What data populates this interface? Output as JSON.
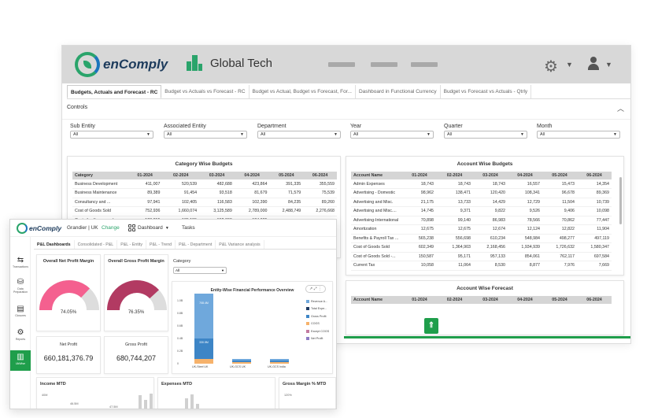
{
  "back": {
    "app_name": "enComply",
    "company": "Global Tech",
    "tabs": [
      "Budgets, Actuals and Forecast - RC",
      "Budget vs Actuals vs Forecast - RC",
      "Budget vs Actual, Budget vs Forecast, For...",
      "Dashboard in Functional Currency",
      "Budget vs Forecast vs Actuals - Qtrly"
    ],
    "controls_label": "Controls",
    "filters": [
      {
        "label": "Sub Entity",
        "value": "All"
      },
      {
        "label": "Associated Entity",
        "value": "All"
      },
      {
        "label": "Department",
        "value": "All"
      },
      {
        "label": "Year",
        "value": "All"
      },
      {
        "label": "Quarter",
        "value": "All"
      },
      {
        "label": "Month",
        "value": "All"
      }
    ],
    "category_budgets": {
      "title": "Category Wise Budgets",
      "headers": [
        "Category",
        "01-2024",
        "02-2024",
        "03-2024",
        "04-2024",
        "05-2024",
        "06-2024"
      ],
      "rows": [
        [
          "Business Development",
          "411,007",
          "520,539",
          "482,688",
          "423,864",
          "391,335",
          "355,559"
        ],
        [
          "Business Maintenance",
          "89,389",
          "91,454",
          "93,518",
          "81,679",
          "71,579",
          "75,539"
        ],
        [
          "Consultancy and ...",
          "97,941",
          "102,405",
          "116,583",
          "102,390",
          "84,235",
          "89,260"
        ],
        [
          "Cost of Goods Sold",
          "752,936",
          "1,660,074",
          "3,125,589",
          "2,789,000",
          "2,488,749",
          "2,276,668"
        ],
        [
          "Cost of software packag",
          "120,815",
          "135,155",
          "152,000",
          "124,005",
          "",
          ""
        ]
      ]
    },
    "account_budgets": {
      "title": "Account Wise Budgets",
      "headers": [
        "Account Name",
        "01-2024",
        "02-2024",
        "03-2024",
        "04-2024",
        "05-2024",
        "06-2024"
      ],
      "rows": [
        [
          "Admin Expenses",
          "18,743",
          "18,743",
          "18,743",
          "16,557",
          "15,473",
          "14,354"
        ],
        [
          "Advertising - Domestic",
          "98,962",
          "138,471",
          "120,420",
          "108,341",
          "96,678",
          "89,369"
        ],
        [
          "Advertising and Misc.",
          "21,175",
          "13,733",
          "14,429",
          "12,729",
          "11,504",
          "10,739"
        ],
        [
          "Advertising and Misc....",
          "14,745",
          "9,371",
          "9,822",
          "9,526",
          "9,406",
          "10,098"
        ],
        [
          "Advertising-International",
          "70,898",
          "99,140",
          "86,983",
          "78,566",
          "70,862",
          "77,447"
        ],
        [
          "Amortization",
          "12,675",
          "12,675",
          "12,674",
          "12,124",
          "12,822",
          "11,904"
        ],
        [
          "Benefits & Payroll Tax ...",
          "565,238",
          "556,698",
          "610,234",
          "548,984",
          "498,277",
          "497,119"
        ],
        [
          "Cost of Goods Sold",
          "602,349",
          "1,364,903",
          "2,168,456",
          "1,934,939",
          "1,726,632",
          "1,580,347"
        ],
        [
          "Cost of Goods Sold -...",
          "150,587",
          "95,171",
          "957,133",
          "854,061",
          "762,117",
          "697,584"
        ],
        [
          "Current Tax",
          "10,058",
          "11,064",
          "8,530",
          "8,877",
          "7,976",
          "7,669"
        ]
      ]
    },
    "account_forecast": {
      "title": "Account Wise Forecast",
      "headers": [
        "Account Name",
        "01-2024",
        "02-2024",
        "03-2024",
        "04-2024",
        "05-2024",
        "06-2024"
      ]
    },
    "back_to_top_icon": "arrow-up-icon"
  },
  "front": {
    "app_name": "enComply",
    "entity": "Grandier | UK",
    "change_label": "Change",
    "dashboard_label": "Dashboard",
    "tasks_label": "Tasks",
    "sidebar": [
      {
        "label": "Transactions",
        "icon": "transactions-icon"
      },
      {
        "label": "Data Preparation",
        "icon": "database-icon"
      },
      {
        "label": "Closures",
        "icon": "closures-icon"
      },
      {
        "label": "Reports",
        "icon": "reports-icon"
      },
      {
        "label": "UkWise",
        "icon": "ukwise-icon"
      }
    ],
    "tabs": [
      "P&L Dashboards",
      "Consolidated - P&L",
      "P&L - Entity",
      "P&L - Trend",
      "P&L - Department",
      "P&L Variance analysis"
    ],
    "net_margin": {
      "title": "Overall Net Profit Margin",
      "value": "74.05%",
      "fraction": 0.7405,
      "color": "#f4608f"
    },
    "gross_margin": {
      "title": "Overall Gross Profit Margin",
      "value": "76.35%",
      "fraction": 0.7635,
      "color": "#b23a62"
    },
    "net_profit": {
      "title": "Net Profit",
      "value": "660,181,376.79"
    },
    "gross_profit": {
      "title": "Gross Profit",
      "value": "680,744,207"
    },
    "category_filter": {
      "label": "Category",
      "value": "All"
    },
    "toolbar_icons": "↗ ⤢ ⋮",
    "income_title": "Income MTD",
    "expenses_title": "Expenses MTD",
    "gm_title": "Gross Margin % MTD",
    "income_axis": "40M",
    "gm_axis": "120%",
    "income_labels": [
      "46.5M",
      "47.5M"
    ],
    "chart_data": {
      "type": "bar",
      "title": "Entity-Wise Financial Performance Overview",
      "categories": [
        "UK-Steel UK",
        "UK-GCS UK",
        "UK-GCS India"
      ],
      "y_ticks": [
        "1.0B",
        "0.8B",
        "0.6B",
        "0.4B",
        "0.2B",
        "0"
      ],
      "ylim": [
        0,
        1000000000
      ],
      "series": [
        {
          "name": "Revenue A...",
          "color": "#6fa8dc",
          "values": [
            708000000,
            0,
            0
          ]
        },
        {
          "name": "Total Expe...",
          "color": "#1f3b63",
          "values": [
            0,
            0,
            0
          ]
        },
        {
          "name": "Gross Profit",
          "color": "#3d85c6",
          "values": [
            330000000,
            0,
            0
          ]
        },
        {
          "name": "COGS",
          "color": "#f6b26b",
          "values": [
            75000000,
            0,
            0
          ]
        },
        {
          "name": "Except COGS",
          "color": "#c27ba0",
          "values": [
            0,
            0,
            0
          ]
        },
        {
          "name": "Net Profit",
          "color": "#8e7cc3",
          "values": [
            0,
            0,
            0
          ]
        }
      ],
      "bar_labels": [
        "330.5M",
        "708.4M"
      ]
    }
  }
}
